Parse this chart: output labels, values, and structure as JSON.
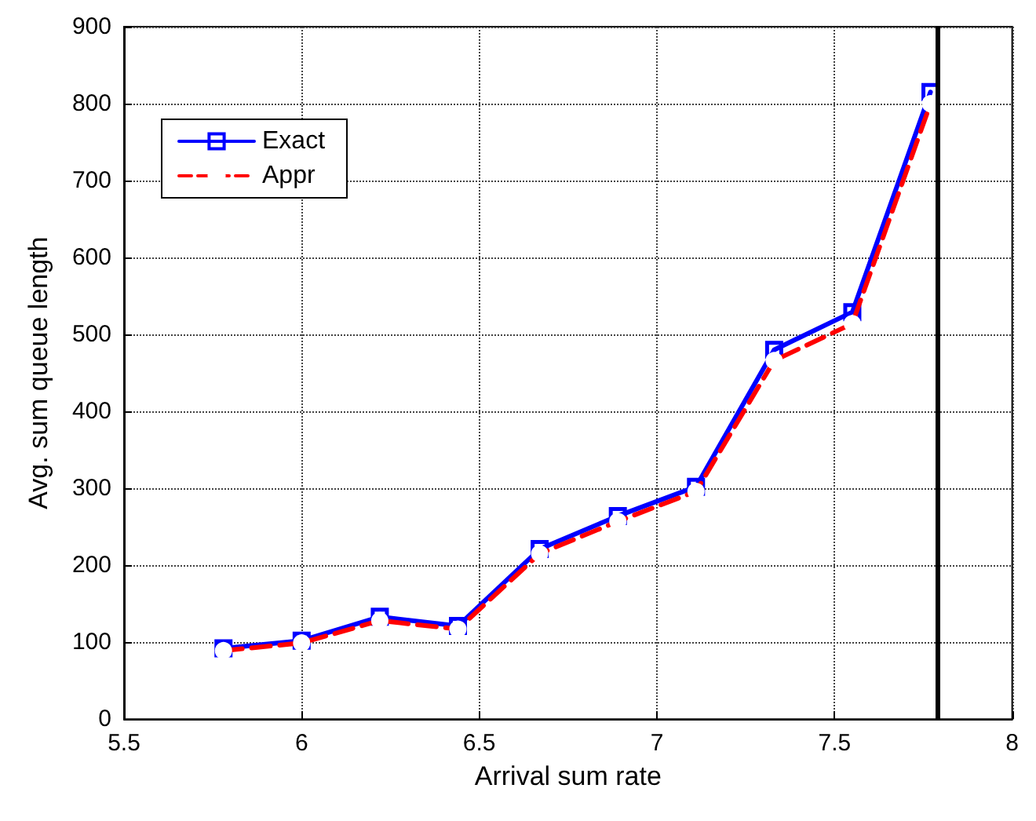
{
  "chart_data": {
    "type": "line",
    "xlabel": "Arrival sum rate",
    "ylabel": "Avg. sum queue length",
    "x": [
      5.78,
      6.0,
      6.22,
      6.44,
      6.67,
      6.89,
      7.11,
      7.33,
      7.55,
      7.77
    ],
    "series": [
      {
        "name": "Exact",
        "color": "#0000ff",
        "marker": "square",
        "line_style": "solid",
        "values": [
          92,
          102,
          133,
          121,
          221,
          264,
          302,
          480,
          529,
          815
        ]
      },
      {
        "name": "Appr",
        "color": "#ff0000",
        "marker": "circle",
        "line_style": "dashed",
        "values": [
          89,
          99,
          128,
          117,
          215,
          257,
          296,
          466,
          514,
          800
        ]
      }
    ],
    "xlim": [
      5.5,
      8
    ],
    "xticks": [
      5.5,
      6,
      6.5,
      7,
      7.5,
      8
    ],
    "ylim": [
      0,
      900
    ],
    "yticks": [
      0,
      100,
      200,
      300,
      400,
      500,
      600,
      700,
      800,
      900
    ],
    "ref_lines": [
      {
        "axis": "x",
        "value": 7.79,
        "color": "#000000",
        "line_style": "solid"
      }
    ],
    "grid": true,
    "legend": "top left"
  }
}
